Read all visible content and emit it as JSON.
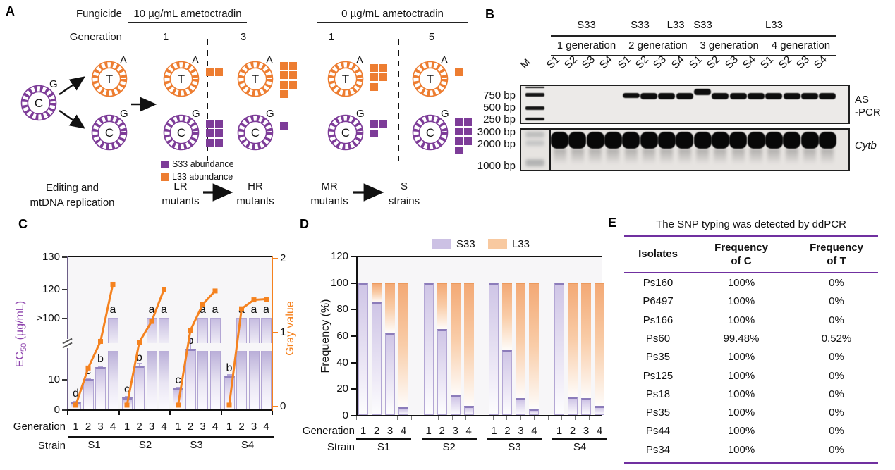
{
  "colors": {
    "purple": "#7D3C98",
    "orange": "#ED7D31",
    "orange_line": "#F5821F",
    "purple_bar_light": "#CCC1E4",
    "orange_bar_light": "#F8C9A0",
    "table_rule": "#7030A0",
    "left_axis": "#6B5E86"
  },
  "panelA": {
    "label": "A",
    "fungicide_label": "Fungicide",
    "generation_label": "Generation",
    "treatments": [
      {
        "label": "10 µg/mL ametoctradin"
      },
      {
        "label": "0 µg/mL ametoctradin"
      }
    ],
    "generation_numbers": [
      "1",
      "3",
      "1",
      "5"
    ],
    "source_molecule": {
      "inner": "C",
      "outer": "G"
    },
    "edited": {
      "top": {
        "inner": "T",
        "outer": "A"
      },
      "bottom": {
        "inner": "C",
        "outer": "G"
      }
    },
    "stages": [
      {
        "generation": "1",
        "top_squares": [
          [
            1,
            1
          ]
        ],
        "bottom_squares": [
          [
            1,
            1
          ],
          [
            1,
            1
          ],
          [
            1,
            1
          ]
        ]
      },
      {
        "generation": "3",
        "top_squares": [
          [
            1,
            1
          ],
          [
            1,
            1
          ],
          [
            1,
            1
          ],
          [
            1,
            0
          ]
        ],
        "bottom_squares": [
          [
            1
          ]
        ]
      },
      {
        "generation": "1",
        "top_squares": [
          [
            1,
            1
          ],
          [
            1,
            1
          ],
          [
            1,
            0
          ]
        ],
        "bottom_squares": [
          [
            1,
            1
          ],
          [
            1,
            0
          ]
        ]
      },
      {
        "generation": "5",
        "top_squares": [
          [
            1
          ]
        ],
        "bottom_squares": [
          [
            1,
            1
          ],
          [
            1,
            1
          ],
          [
            1,
            1
          ],
          [
            1,
            0
          ]
        ]
      }
    ],
    "legend": [
      {
        "label": "S33 abundance",
        "color_key": "purple"
      },
      {
        "label": "L33 abundance",
        "color_key": "orange"
      }
    ],
    "bottom_caption": "Editing and\nmtDNA replication",
    "flow": [
      {
        "top": "LR",
        "bottom": "mutants"
      },
      {
        "top": "HR",
        "bottom": "mutants"
      },
      {
        "top": "MR",
        "bottom": "mutants"
      },
      {
        "top": "S",
        "bottom": "strains"
      }
    ]
  },
  "panelB": {
    "label": "B",
    "marker_lane": "M",
    "lanes": [
      "S1",
      "S2",
      "S3",
      "S4",
      "S1",
      "S2",
      "S3",
      "S4",
      "S1",
      "S2",
      "S3",
      "S4",
      "S1",
      "S2",
      "S3",
      "S4"
    ],
    "genotype_groups": [
      {
        "label": "S33",
        "from": 1,
        "to": 4
      },
      {
        "label": "S33",
        "from": 5,
        "to": 6
      },
      {
        "label": "L33",
        "from": 7,
        "to": 8
      },
      {
        "label": "S33",
        "from": 9,
        "to": 9
      },
      {
        "label": "L33",
        "from": 10,
        "to": 16
      }
    ],
    "generation_groups": [
      {
        "label": "1 generation",
        "from": 1,
        "to": 4
      },
      {
        "label": "2 generation",
        "from": 5,
        "to": 8
      },
      {
        "label": "3 generation",
        "from": 9,
        "to": 12
      },
      {
        "label": "4 generation",
        "from": 13,
        "to": 16
      }
    ],
    "gels": [
      {
        "right_label": "AS\n-PCR",
        "italic": false,
        "size_labels": [
          "750 bp",
          "500 bp",
          "250 bp"
        ],
        "band_lanes": [
          5,
          6,
          7,
          8,
          9,
          10,
          11,
          12,
          13,
          14,
          15,
          16
        ],
        "high_band_lane": 9
      },
      {
        "right_label": "Cytb",
        "italic": true,
        "size_labels": [
          "3000 bp",
          "2000 bp",
          "1000 bp"
        ],
        "band_lanes": [
          1,
          2,
          3,
          4,
          5,
          6,
          7,
          8,
          9,
          10,
          11,
          12,
          13,
          14,
          15,
          16
        ]
      }
    ]
  },
  "chart_data": [
    {
      "panel": "C",
      "type": "bar-line-combo",
      "groups": [
        "S1",
        "S2",
        "S3",
        "S4"
      ],
      "x": [
        "1",
        "2",
        "3",
        "4"
      ],
      "x_axis_rows": {
        "generation": "Generation",
        "strain": "Strain"
      },
      "left_axis": {
        "label_parts": [
          "EC",
          "50",
          " (µg/mL)"
        ],
        "ticks": [
          "0",
          "10",
          ">100",
          "120",
          "130"
        ],
        "broken_axis": true
      },
      "right_axis": {
        "label": "Gray value",
        "ticks": [
          "0",
          "1",
          "2"
        ],
        "range": [
          0,
          2
        ]
      },
      "bars": {
        "name": "EC50 (µg/mL)",
        "values": [
          [
            2.5,
            10,
            14,
            ">100"
          ],
          [
            4,
            14.5,
            ">100",
            ">100"
          ],
          [
            7,
            20,
            ">100",
            ">100"
          ],
          [
            11,
            ">100",
            ">100",
            ">100"
          ]
        ],
        "errors": [
          [
            0.2,
            0.3,
            0.4,
            0
          ],
          [
            0.4,
            0.8,
            0,
            0
          ],
          [
            0.5,
            3.8,
            0,
            0
          ],
          [
            0.6,
            0,
            0,
            0
          ]
        ]
      },
      "letters": [
        [
          "d",
          "c",
          "b",
          "a"
        ],
        [
          "c",
          "b",
          "a",
          "a"
        ],
        [
          "c",
          "b",
          "a",
          "a"
        ],
        [
          "b",
          "a",
          "a",
          "a"
        ]
      ],
      "line": {
        "name": "Gray value",
        "values": [
          [
            0.01,
            0.51,
            0.87,
            1.64
          ],
          [
            0.01,
            0.86,
            1.14,
            1.57
          ],
          [
            0.01,
            1.02,
            1.37,
            1.55
          ],
          [
            0.01,
            1.31,
            1.43,
            1.44
          ]
        ]
      }
    },
    {
      "panel": "D",
      "type": "stacked-bar",
      "ylabel": "Frequency (%)",
      "ylim": [
        0,
        120
      ],
      "yticks": [
        0,
        20,
        40,
        60,
        80,
        100,
        120
      ],
      "legend": [
        {
          "name": "S33",
          "color_key": "purple_bar_light"
        },
        {
          "name": "L33",
          "color_key": "orange_bar_light"
        }
      ],
      "groups": [
        "S1",
        "S2",
        "S3",
        "S4"
      ],
      "x": [
        "1",
        "2",
        "3",
        "4"
      ],
      "x_axis_rows": {
        "generation": "Generation",
        "strain": "Strain"
      },
      "series": {
        "S33": [
          [
            100,
            85,
            62,
            6
          ],
          [
            100,
            65,
            15,
            7
          ],
          [
            100,
            49,
            13,
            5
          ],
          [
            100,
            14,
            12.5,
            7
          ]
        ],
        "L33": [
          [
            0,
            15,
            38,
            94
          ],
          [
            0,
            35,
            85,
            93
          ],
          [
            0,
            51,
            87,
            95
          ],
          [
            0,
            86,
            87.5,
            93
          ]
        ]
      }
    }
  ],
  "panelE": {
    "label": "E",
    "title": "The SNP typing was detected by ddPCR",
    "columns": [
      "Isolates",
      "Frequency\nof C",
      "Frequency\nof T"
    ],
    "rows": [
      [
        "Ps160",
        "100%",
        "0%"
      ],
      [
        "P6497",
        "100%",
        "0%"
      ],
      [
        "Ps166",
        "100%",
        "0%"
      ],
      [
        "Ps60",
        "99.48%",
        "0.52%"
      ],
      [
        "Ps35",
        "100%",
        "0%"
      ],
      [
        "Ps125",
        "100%",
        "0%"
      ],
      [
        "Ps18",
        "100%",
        "0%"
      ],
      [
        "Ps35",
        "100%",
        "0%"
      ],
      [
        "Ps44",
        "100%",
        "0%"
      ],
      [
        "Ps34",
        "100%",
        "0%"
      ]
    ]
  }
}
